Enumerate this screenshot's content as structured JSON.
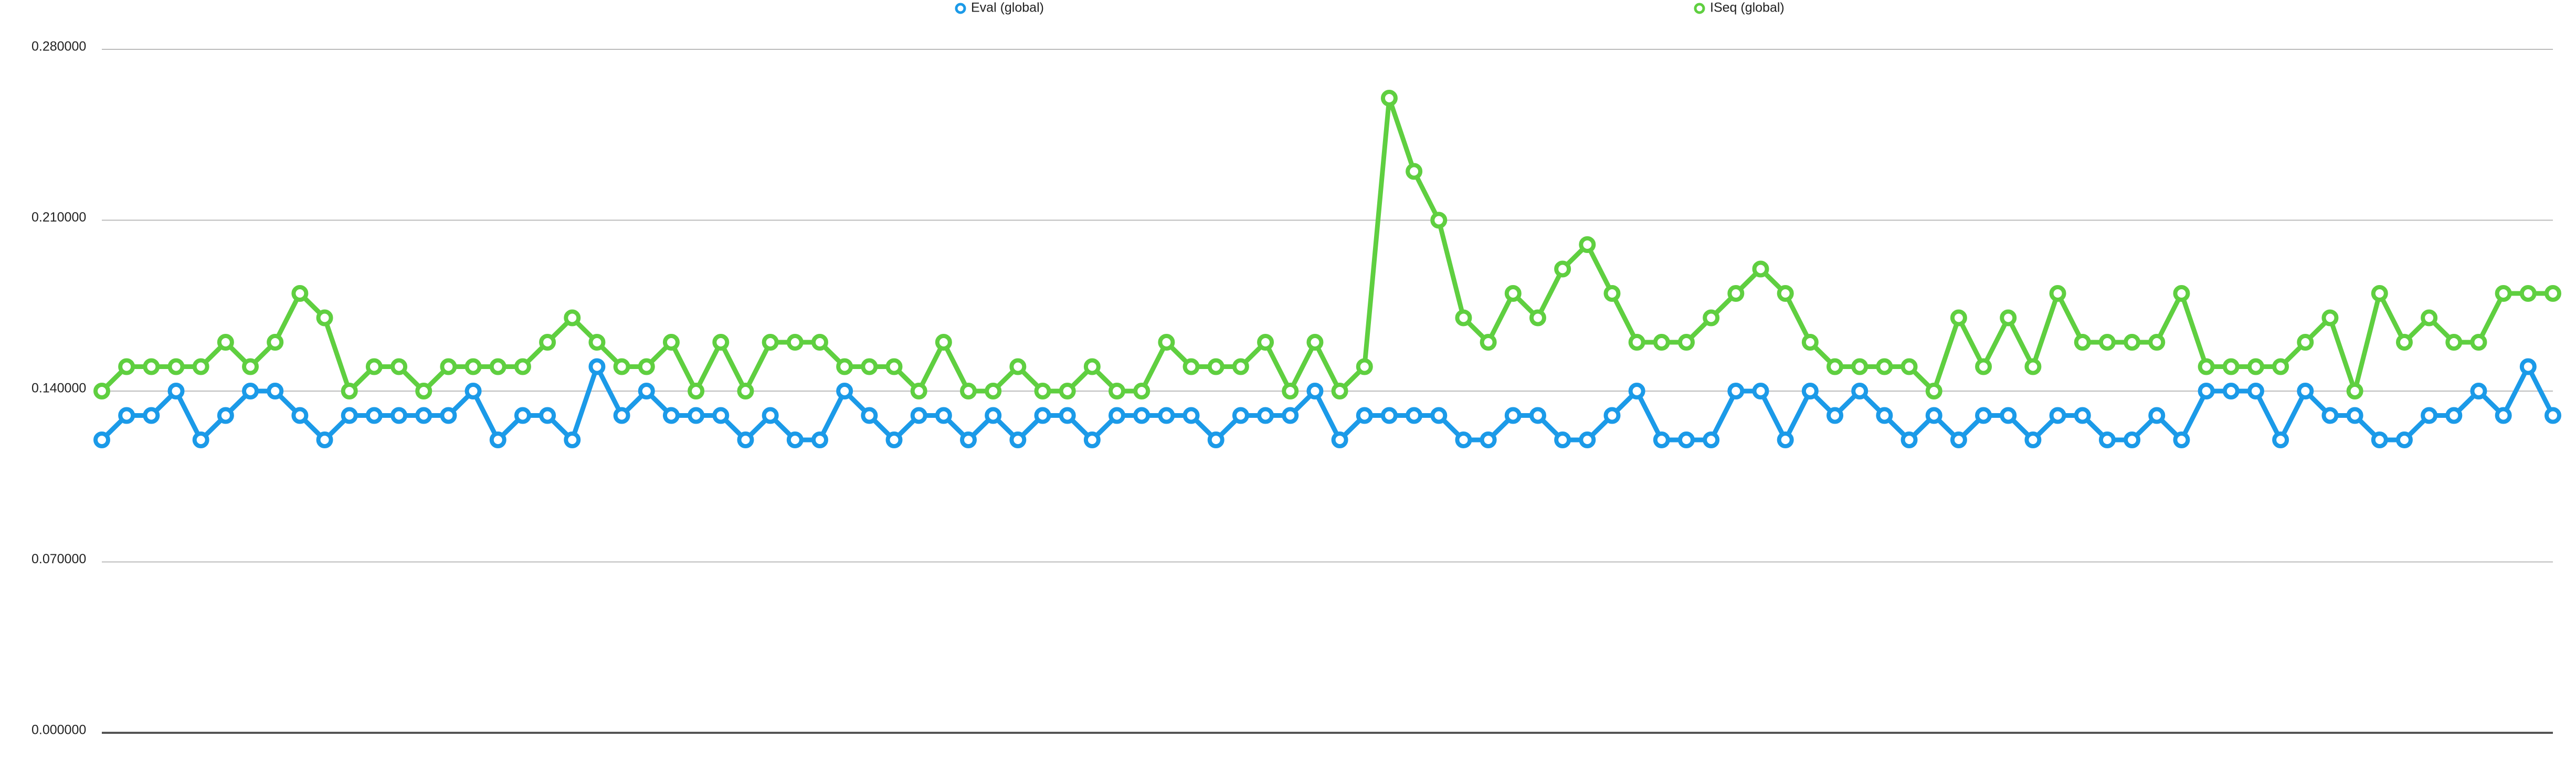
{
  "chart_data": {
    "type": "line",
    "categories": [
      null,
      null,
      null,
      null,
      null,
      null,
      null,
      null,
      null,
      null,
      null,
      null,
      null,
      null,
      null,
      null,
      null,
      null,
      null,
      null,
      null,
      null,
      null,
      null,
      null,
      null,
      null,
      null,
      null,
      null,
      null,
      null,
      null,
      null,
      null,
      null,
      null,
      null,
      null,
      null,
      null,
      null,
      null,
      null,
      null,
      null,
      null,
      null,
      null,
      null,
      null,
      null,
      null,
      null,
      null,
      null,
      null,
      null,
      null,
      null,
      null,
      null,
      null,
      null,
      null,
      null,
      null,
      null,
      null,
      null,
      null,
      null,
      null,
      null,
      null,
      null,
      null,
      null,
      null,
      null,
      null,
      null,
      null,
      null,
      null,
      null,
      null,
      null,
      null,
      null,
      null,
      null,
      null,
      null,
      null,
      null,
      null,
      null,
      null,
      null
    ],
    "series": [
      {
        "name": "Eval (global)",
        "color": "#1b9ae8",
        "values": [
          0.12,
          0.13,
          0.13,
          0.14,
          0.12,
          0.13,
          0.14,
          0.14,
          0.13,
          0.12,
          0.13,
          0.13,
          0.13,
          0.13,
          0.13,
          0.14,
          0.12,
          0.13,
          0.13,
          0.12,
          0.15,
          0.13,
          0.14,
          0.13,
          0.13,
          0.13,
          0.12,
          0.13,
          0.12,
          0.12,
          0.14,
          0.13,
          0.12,
          0.13,
          0.13,
          0.12,
          0.13,
          0.12,
          0.13,
          0.13,
          0.12,
          0.13,
          0.13,
          0.13,
          0.13,
          0.12,
          0.13,
          0.13,
          0.13,
          0.14,
          0.12,
          0.13,
          0.13,
          0.13,
          0.13,
          0.12,
          0.12,
          0.13,
          0.13,
          0.12,
          0.12,
          0.13,
          0.14,
          0.12,
          0.12,
          0.12,
          0.14,
          0.14,
          0.12,
          0.14,
          0.13,
          0.14,
          0.13,
          0.12,
          0.13,
          0.12,
          0.13,
          0.13,
          0.12,
          0.13,
          0.13,
          0.12,
          0.12,
          0.13,
          0.12,
          0.14,
          0.14,
          0.14,
          0.12,
          0.14,
          0.13,
          0.13,
          0.12,
          0.12,
          0.13,
          0.13,
          0.14,
          0.13,
          0.15,
          0.13
        ]
      },
      {
        "name": "ISeq (global)",
        "color": "#5fcf40",
        "values": [
          0.14,
          0.15,
          0.15,
          0.15,
          0.15,
          0.16,
          0.15,
          0.16,
          0.18,
          0.17,
          0.14,
          0.15,
          0.15,
          0.14,
          0.15,
          0.15,
          0.15,
          0.15,
          0.16,
          0.17,
          0.16,
          0.15,
          0.15,
          0.16,
          0.14,
          0.16,
          0.14,
          0.16,
          0.16,
          0.16,
          0.15,
          0.15,
          0.15,
          0.14,
          0.16,
          0.14,
          0.14,
          0.15,
          0.14,
          0.14,
          0.15,
          0.14,
          0.14,
          0.16,
          0.15,
          0.15,
          0.15,
          0.16,
          0.14,
          0.16,
          0.14,
          0.15,
          0.26,
          0.23,
          0.21,
          0.17,
          0.16,
          0.18,
          0.17,
          0.19,
          0.2,
          0.18,
          0.16,
          0.16,
          0.16,
          0.17,
          0.18,
          0.19,
          0.18,
          0.16,
          0.15,
          0.15,
          0.15,
          0.15,
          0.14,
          0.17,
          0.15,
          0.17,
          0.15,
          0.18,
          0.16,
          0.16,
          0.16,
          0.16,
          0.18,
          0.15,
          0.15,
          0.15,
          0.15,
          0.16,
          0.17,
          0.14,
          0.18,
          0.16,
          0.17,
          0.16,
          0.16,
          0.18,
          0.18,
          0.18
        ]
      }
    ],
    "ylim": [
      0,
      0.28
    ],
    "yticks": [
      {
        "value": 0,
        "label": "0.000000"
      },
      {
        "value": 0.07,
        "label": "0.070000"
      },
      {
        "value": 0.14,
        "label": "0.140000"
      },
      {
        "value": 0.21,
        "label": "0.210000"
      },
      {
        "value": 0.28,
        "label": "0.280000"
      }
    ],
    "grid": true,
    "legend": "top"
  }
}
